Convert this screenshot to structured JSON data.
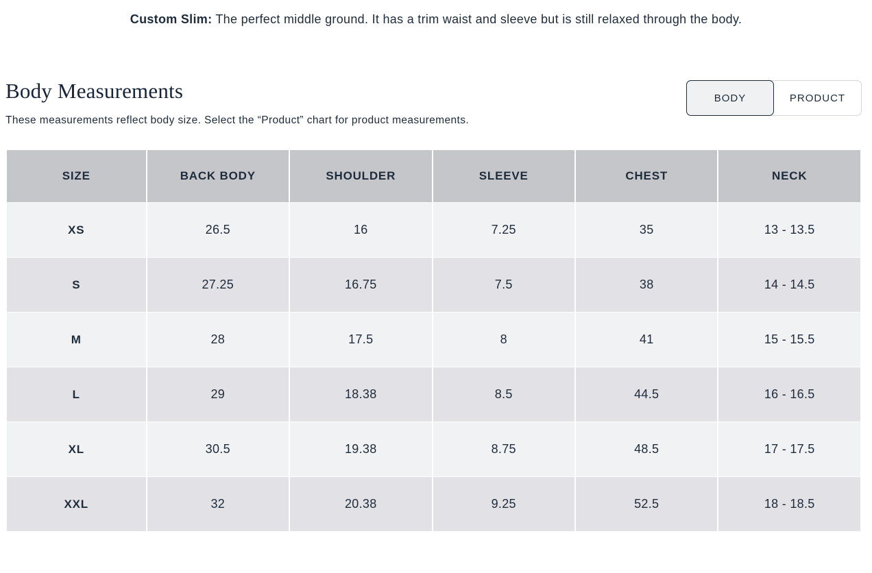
{
  "intro": {
    "label": "Custom Slim:",
    "text": " The perfect middle ground. It has a trim waist and sleeve but is still relaxed through the body."
  },
  "section": {
    "title": "Body Measurements",
    "subtitle": "These measurements reflect body size. Select the “Product” chart for product measurements."
  },
  "toggle": {
    "options": [
      {
        "label": "BODY",
        "selected": true
      },
      {
        "label": "PRODUCT",
        "selected": false
      }
    ]
  },
  "table": {
    "columns": [
      "SIZE",
      "BACK BODY",
      "SHOULDER",
      "SLEEVE",
      "CHEST",
      "NECK"
    ],
    "rows": [
      [
        "XS",
        "26.5",
        "16",
        "7.25",
        "35",
        "13 - 13.5"
      ],
      [
        "S",
        "27.25",
        "16.75",
        "7.5",
        "38",
        "14 - 14.5"
      ],
      [
        "M",
        "28",
        "17.5",
        "8",
        "41",
        "15 - 15.5"
      ],
      [
        "L",
        "29",
        "18.38",
        "8.5",
        "44.5",
        "16 - 16.5"
      ],
      [
        "XL",
        "30.5",
        "19.38",
        "8.75",
        "48.5",
        "17 - 17.5"
      ],
      [
        "XXL",
        "32",
        "20.38",
        "9.25",
        "52.5",
        "18 - 18.5"
      ]
    ]
  },
  "colors": {
    "text": "#1e2b3a",
    "header_bg": "#c5c6ca",
    "row_light": "#f1f2f4",
    "row_dark": "#e2e2e6",
    "selected_toggle_bg": "#f0f1f3"
  }
}
